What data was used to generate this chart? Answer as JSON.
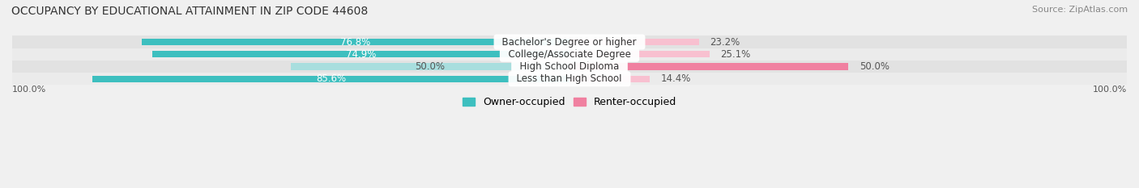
{
  "title": "OCCUPANCY BY EDUCATIONAL ATTAINMENT IN ZIP CODE 44608",
  "source": "Source: ZipAtlas.com",
  "categories": [
    "Less than High School",
    "High School Diploma",
    "College/Associate Degree",
    "Bachelor's Degree or higher"
  ],
  "owner_pct": [
    85.6,
    50.0,
    74.9,
    76.8
  ],
  "renter_pct": [
    14.4,
    50.0,
    25.1,
    23.2
  ],
  "owner_color": "#3dbfbf",
  "renter_color": "#f080a0",
  "owner_color_light": "#a8dede",
  "renter_color_light": "#f8c0d0",
  "title_fontsize": 10,
  "source_fontsize": 8,
  "tick_fontsize": 8,
  "legend_fontsize": 9,
  "bar_label_fontsize": 8.5,
  "cat_label_fontsize": 8.5,
  "axis_label_left": "100.0%",
  "axis_label_right": "100.0%"
}
